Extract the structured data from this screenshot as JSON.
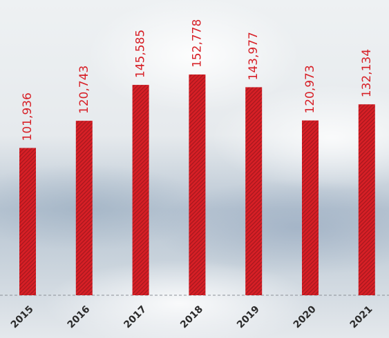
{
  "chart_data": {
    "type": "bar",
    "categories": [
      "2015",
      "2016",
      "2017",
      "2018",
      "2019",
      "2020",
      "2021"
    ],
    "values": [
      101936,
      120743,
      145585,
      152778,
      143977,
      120973,
      132134
    ],
    "value_labels": [
      "101,936",
      "120,743",
      "145,585",
      "152,778",
      "143,977",
      "120,973",
      "132,134"
    ],
    "color": "#d71f26"
  }
}
